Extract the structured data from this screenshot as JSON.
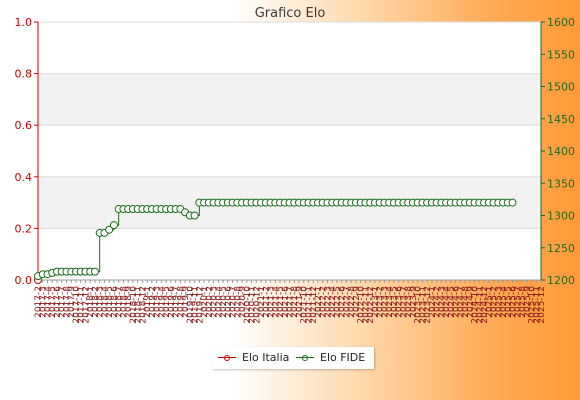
{
  "chart_data": {
    "type": "line",
    "title": "Grafico Elo",
    "y_left": {
      "ylim": [
        0,
        1
      ],
      "ticks": [
        "0.0",
        "0.2",
        "0.4",
        "0.6",
        "0.8",
        "1.0"
      ]
    },
    "y_right": {
      "ylim": [
        1200,
        1600
      ],
      "ticks": [
        "1200",
        "1250",
        "1300",
        "1350",
        "1400",
        "1450",
        "1500",
        "1550",
        "1600"
      ]
    },
    "x_tick_labels": [
      "2017-2",
      "2017-3",
      "2017-4",
      "2017-5",
      "2017-6",
      "2017-7",
      "2017-8",
      "2017-9",
      "2017-10",
      "2017-11",
      "2017-12",
      "2018-1",
      "2018-2",
      "2018-3",
      "2018-4",
      "2018-5",
      "2018-6",
      "2018-7",
      "2018-8",
      "2018-9",
      "2018-10",
      "2018-11",
      "2018-12",
      "2019-1",
      "2019-2",
      "2019-3",
      "2019-4",
      "2019-5",
      "2019-6",
      "2019-7",
      "2019-8",
      "2019-9",
      "2019-10",
      "2019-11",
      "2019-12",
      "2020-1",
      "2020-2",
      "2020-3",
      "2020-4",
      "2020-5",
      "2020-6",
      "2020-7",
      "2020-8",
      "2020-9",
      "2020-10",
      "2020-11",
      "2020-12",
      "2021-1",
      "2021-2",
      "2021-3",
      "2021-4",
      "2021-5",
      "2021-6",
      "2021-7",
      "2021-8",
      "2021-9",
      "2021-10",
      "2021-11",
      "2021-12",
      "2022-1",
      "2022-2",
      "2022-3",
      "2022-4",
      "2022-5",
      "2022-6",
      "2022-7",
      "2022-8",
      "2022-9",
      "2022-10",
      "2022-11",
      "2022-12",
      "2023-1",
      "2023-2",
      "2023-3",
      "2023-4",
      "2023-5",
      "2023-6",
      "2023-7",
      "2023-8",
      "2023-9",
      "2023-10",
      "2023-11",
      "2023-12",
      "2024-1",
      "2024-2",
      "2024-3",
      "2024-4",
      "2024-5",
      "2024-6",
      "2024-7",
      "2024-8",
      "2024-9",
      "2024-10",
      "2024-11",
      "2024-12",
      "2025-1",
      "2025-2",
      "2025-3",
      "2025-4",
      "2025-5",
      "2025-6",
      "2025-7",
      "2025-8",
      "2025-9",
      "2025-10",
      "2025-11",
      "2025-12"
    ],
    "series": [
      {
        "name": "Elo Italia",
        "axis": "left",
        "color": "#cc0000",
        "values": [
          0
        ]
      },
      {
        "name": "Elo FIDE",
        "axis": "right",
        "color": "#1a6b1a",
        "values": [
          1206,
          1209,
          1209,
          1211,
          1213,
          1213,
          1213,
          1213,
          1213,
          1213,
          1213,
          1213,
          1213,
          1273,
          1273,
          1278,
          1285,
          1310,
          1310,
          1310,
          1310,
          1310,
          1310,
          1310,
          1310,
          1310,
          1310,
          1310,
          1310,
          1310,
          1310,
          1305,
          1300,
          1300,
          1320,
          1320,
          1320,
          1320,
          1320,
          1320,
          1320,
          1320,
          1320,
          1320,
          1320,
          1320,
          1320,
          1320,
          1320,
          1320,
          1320,
          1320,
          1320,
          1320,
          1320,
          1320,
          1320,
          1320,
          1320,
          1320,
          1320,
          1320,
          1320,
          1320,
          1320,
          1320,
          1320,
          1320,
          1320,
          1320,
          1320,
          1320,
          1320,
          1320,
          1320,
          1320,
          1320,
          1320,
          1320,
          1320,
          1320,
          1320,
          1320,
          1320,
          1320,
          1320,
          1320,
          1320,
          1320,
          1320,
          1320,
          1320,
          1320,
          1320,
          1320,
          1320,
          1320,
          1320,
          1320,
          1320,
          1320
        ]
      }
    ],
    "grid": true,
    "legend": {
      "position": "bottom-center",
      "entries": [
        "Elo Italia",
        "Elo FIDE"
      ]
    }
  }
}
